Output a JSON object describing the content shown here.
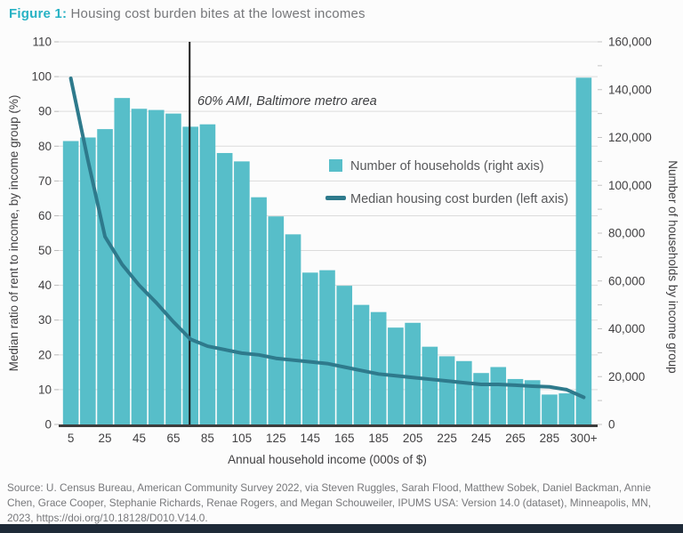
{
  "figure": {
    "label": "Figure 1:",
    "title": "Housing cost burden bites at the lowest incomes"
  },
  "annotation": "60% AMI, Baltimore metro area",
  "legend": {
    "bar_label": "Number of households (right axis)",
    "line_label": "Median housing cost burden (left axis)"
  },
  "source": "Source: U. Census Bureau, American Community Survey 2022, via Steven Ruggles, Sarah Flood, Matthew Sobek, Daniel Backman, Annie Chen, Grace Cooper, Stephanie Richards, Renae Rogers, and Megan Schouweiler,  IPUMS USA: Version 14.0 (dataset), Minneapolis, MN, 2023, https://doi.org/10.18128/D010.V14.0.",
  "colors": {
    "bar": "#57bec9",
    "line": "#2e7a8c",
    "grid": "#dcdcdc",
    "axis": "#3d3d3d",
    "ami_line": "#1a1a1a",
    "accent_title": "#27b2c4",
    "footer_bar": "#1e2a38"
  },
  "chart_data": {
    "type": "bar",
    "title": "",
    "xlabel": "Annual household income (000s of $)",
    "ylabel_left": "Median ratio of rent to income, by income group (%)",
    "ylabel_right": "Number of households by income group",
    "ylim_left": [
      0,
      110
    ],
    "ylim_right": [
      0,
      160000
    ],
    "left_ticks": [
      "0",
      "10",
      "20",
      "30",
      "40",
      "50",
      "60",
      "70",
      "80",
      "90",
      "100",
      "110"
    ],
    "right_ticks": [
      "0",
      "20,000",
      "40,000",
      "60,000",
      "80,000",
      "100,000",
      "120,000",
      "140,000",
      "160,000"
    ],
    "grid": true,
    "legend_position": "upper right",
    "categories": [
      "5",
      "15",
      "25",
      "35",
      "45",
      "55",
      "65",
      "75",
      "85",
      "95",
      "105",
      "115",
      "125",
      "135",
      "145",
      "155",
      "165",
      "175",
      "185",
      "195",
      "205",
      "215",
      "225",
      "235",
      "245",
      "255",
      "265",
      "275",
      "285",
      "295",
      "300+"
    ],
    "x_tick_labels": [
      "5",
      "25",
      "45",
      "65",
      "85",
      "105",
      "125",
      "145",
      "165",
      "185",
      "205",
      "225",
      "245",
      "265",
      "285",
      "300+"
    ],
    "ami_line_income_k": 74.5,
    "series": [
      {
        "name": "Number of households (right axis)",
        "type": "bar",
        "axis": "right",
        "values": [
          118500,
          120000,
          123500,
          136500,
          132000,
          131500,
          130000,
          124500,
          125500,
          113500,
          110000,
          95000,
          87000,
          79500,
          63500,
          64500,
          58000,
          50000,
          47000,
          40500,
          42500,
          32500,
          28500,
          26500,
          21500,
          24000,
          19000,
          18500,
          12500,
          13000,
          145000
        ]
      },
      {
        "name": "Median housing cost burden (left axis)",
        "type": "line",
        "axis": "left",
        "values": [
          99.5,
          76,
          54,
          46,
          40,
          35,
          29.5,
          24.5,
          22.5,
          21.5,
          20.5,
          20,
          19,
          18.5,
          18,
          17.5,
          16.5,
          15.5,
          14.5,
          14,
          13.5,
          13,
          12.5,
          12,
          11.5,
          11.5,
          11.3,
          11,
          10.8,
          10,
          7.8
        ]
      }
    ]
  }
}
